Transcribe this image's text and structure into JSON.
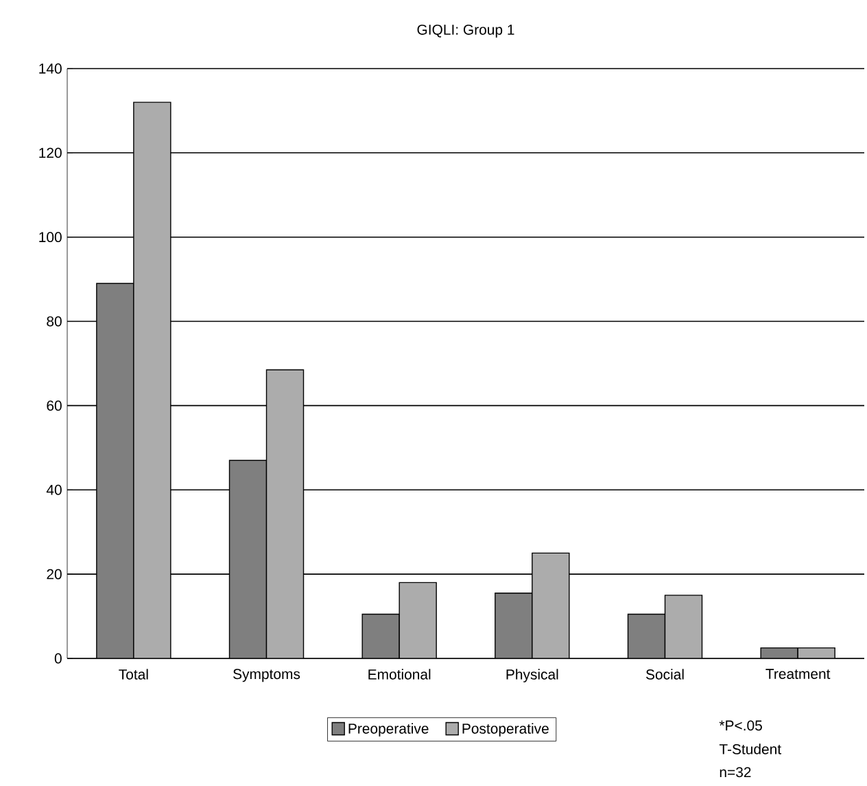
{
  "chart_data": {
    "type": "bar",
    "title": "GIQLI: Group 1",
    "categories": [
      "Total",
      "Symptoms",
      "Emotional",
      "Physical",
      "Social",
      "Treatment"
    ],
    "series": [
      {
        "name": "Preoperative",
        "color": "#7f7f7f",
        "values": [
          89,
          47,
          10.5,
          15.5,
          10.5,
          2.5
        ]
      },
      {
        "name": "Postoperative",
        "color": "#acacac",
        "values": [
          132,
          68.5,
          18,
          25,
          15,
          2.5
        ]
      }
    ],
    "ylim": [
      0,
      140
    ],
    "yticks": [
      0,
      20,
      40,
      60,
      80,
      100,
      120,
      140
    ],
    "grid": "y",
    "legend": "bottom",
    "annotations": [
      "*P<.05",
      "T-Student",
      "n=32"
    ]
  }
}
